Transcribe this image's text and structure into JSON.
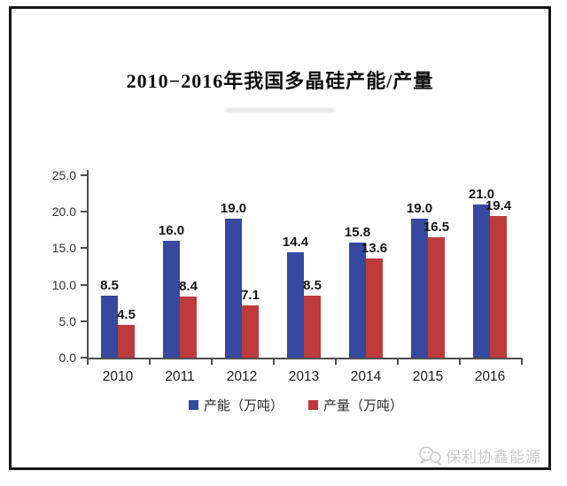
{
  "title_block": {
    "title": "2010−2016年我国多晶硅产能/产量"
  },
  "watermark": {
    "icon": "chat-bubbles-logo-icon",
    "text": "保利协鑫能源",
    "color": "#c9c9c9"
  },
  "chart_data": {
    "type": "bar",
    "title": "2010−2016年我国多晶硅产能/产量",
    "categories": [
      "2010",
      "2011",
      "2012",
      "2013",
      "2014",
      "2015",
      "2016"
    ],
    "series": [
      {
        "name": "产能（万吨）",
        "color": "#36489F",
        "values": [
          8.5,
          16.0,
          19.0,
          14.4,
          15.8,
          19.0,
          21.0
        ]
      },
      {
        "name": "产量（万吨）",
        "color": "#BE3A3C",
        "values": [
          4.5,
          8.4,
          7.1,
          8.5,
          13.6,
          16.5,
          19.4
        ]
      }
    ],
    "xlabel": "",
    "ylabel": "",
    "ylim": [
      0,
      25
    ],
    "ytick_step": 5,
    "ytick_labels": [
      "0.0",
      "5.0",
      "10.0",
      "15.0",
      "20.0",
      "25.0"
    ],
    "grid": false,
    "legend_position": "bottom",
    "value_label_decimals": 1,
    "axis_color": "#4d4d4d"
  }
}
